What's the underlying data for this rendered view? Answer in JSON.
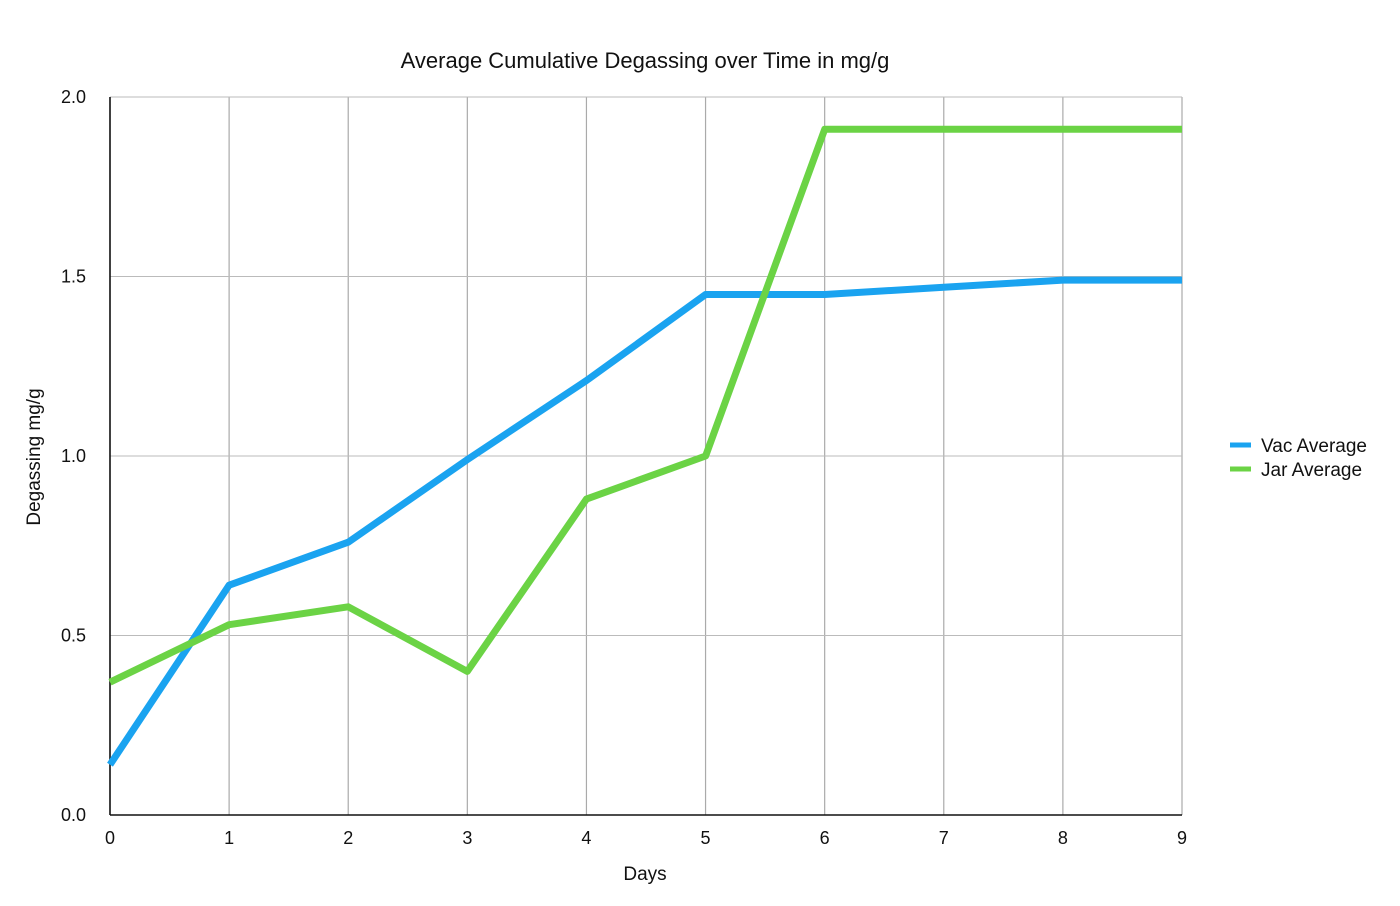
{
  "chart_data": {
    "type": "line",
    "title": "Average Cumulative Degassing over Time in mg/g",
    "xlabel": "Days",
    "ylabel": "Degassing mg/g",
    "x": [
      0,
      1,
      2,
      3,
      4,
      5,
      6,
      7,
      8,
      9
    ],
    "x_tick_labels": [
      "0",
      "1",
      "2",
      "3",
      "4",
      "5",
      "6",
      "7",
      "8",
      "9"
    ],
    "y_tick_labels": [
      "0.0",
      "0.5",
      "1.0",
      "1.5",
      "2.0"
    ],
    "xlim": [
      0,
      9
    ],
    "ylim": [
      0,
      2.0
    ],
    "grid": true,
    "legend_position": "right",
    "series": [
      {
        "name": "Vac Average",
        "color": "#1aa3f0",
        "values": [
          0.14,
          0.64,
          0.76,
          0.99,
          1.21,
          1.45,
          1.45,
          1.47,
          1.49,
          1.49
        ]
      },
      {
        "name": "Jar Average",
        "color": "#6bd345",
        "values": [
          0.37,
          0.53,
          0.58,
          0.4,
          0.88,
          1.0,
          1.91,
          1.91,
          1.91,
          1.91
        ]
      }
    ]
  }
}
